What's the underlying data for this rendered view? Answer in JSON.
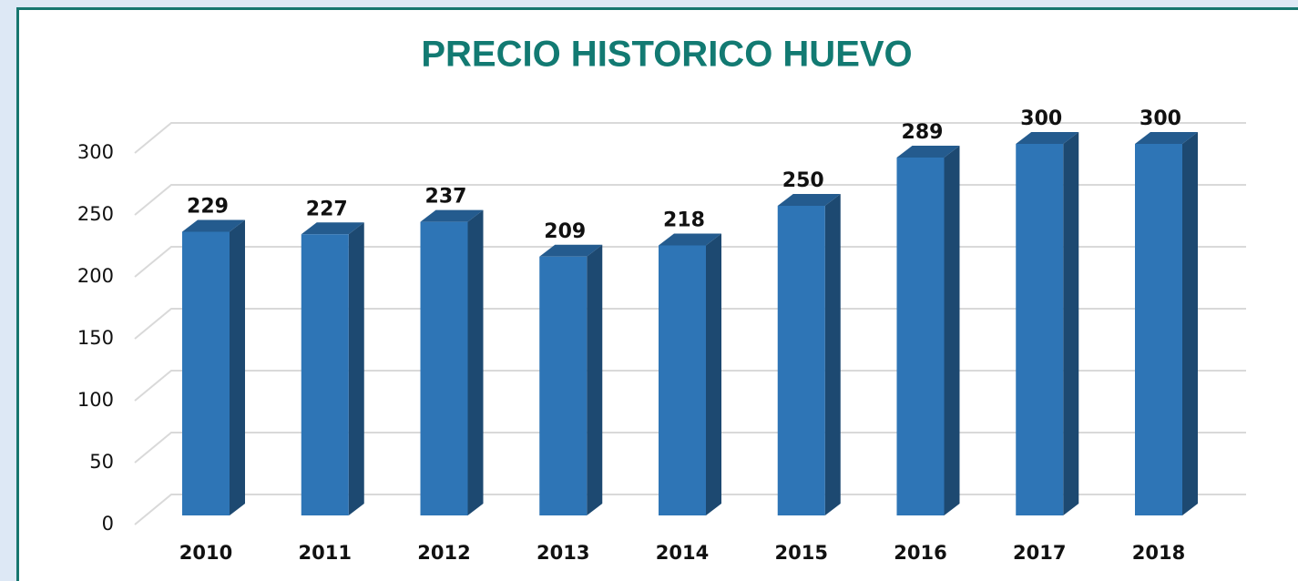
{
  "chart_data": {
    "type": "bar",
    "title": "PRECIO HISTORICO HUEVO",
    "categories": [
      "2010",
      "2011",
      "2012",
      "2013",
      "2014",
      "2015",
      "2016",
      "2017",
      "2018"
    ],
    "values": [
      229,
      227,
      237,
      209,
      218,
      250,
      289,
      300,
      300
    ],
    "color": "#2e75b6",
    "ylim": [
      0,
      300
    ],
    "yticks": [
      0,
      50,
      100,
      150,
      200,
      250,
      300
    ],
    "grid": true
  }
}
